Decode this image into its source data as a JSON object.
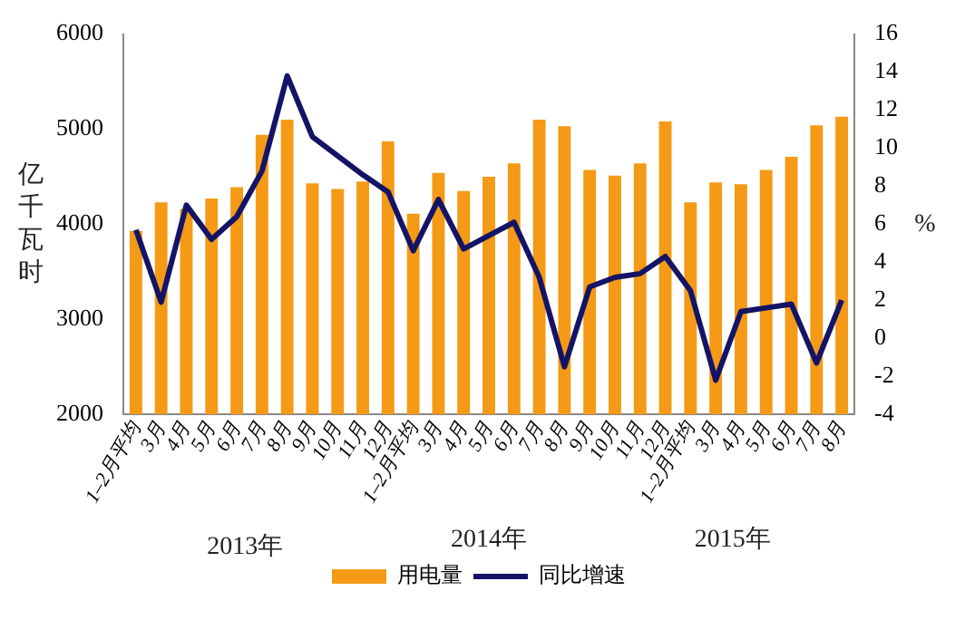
{
  "chart_data": {
    "type": "bar",
    "ylabel": "亿千瓦时",
    "y2label": "%",
    "categories": [
      "1–2月平均",
      "3月",
      "4月",
      "5月",
      "6月",
      "7月",
      "8月",
      "9月",
      "10月",
      "11月",
      "12月",
      "1–2月平均",
      "3月",
      "4月",
      "5月",
      "6月",
      "7月",
      "8月",
      "9月",
      "10月",
      "11月",
      "12月",
      "1–2月平均",
      "3月",
      "4月",
      "5月",
      "6月",
      "7月",
      "8月"
    ],
    "series": [
      {
        "name": "用电量",
        "color": "#f59a16",
        "values": [
          3930,
          4230,
          4160,
          4270,
          4390,
          4940,
          5100,
          4430,
          4370,
          4450,
          4870,
          4110,
          4540,
          4350,
          4500,
          4640,
          5100,
          5030,
          4570,
          4510,
          4640,
          5080,
          4230,
          4440,
          4420,
          4570,
          4710,
          5040,
          5130
        ]
      },
      {
        "name": "同比增速",
        "type": "line",
        "axis": "y2",
        "color": "#141466",
        "values": [
          5.7,
          1.9,
          7.0,
          5.2,
          6.4,
          8.8,
          13.8,
          10.6,
          9.6,
          8.6,
          7.7,
          4.6,
          7.3,
          4.7,
          5.4,
          6.1,
          3.2,
          -1.5,
          2.7,
          3.2,
          3.4,
          4.3,
          2.5,
          -2.2,
          1.4,
          1.6,
          1.8,
          -1.3,
          2.0
        ]
      }
    ],
    "ylim": [
      2000,
      6000
    ],
    "yticks": [
      2000,
      3000,
      4000,
      5000,
      6000
    ],
    "y2lim": [
      -4,
      16
    ],
    "y2ticks": [
      -4,
      -2,
      0,
      2,
      4,
      6,
      8,
      10,
      12,
      14,
      16
    ],
    "annotations": [
      "2013年",
      "2014年",
      "2015年"
    ],
    "grid": false,
    "legend": "bottom",
    "marker": "none",
    "line_style": "solid"
  }
}
